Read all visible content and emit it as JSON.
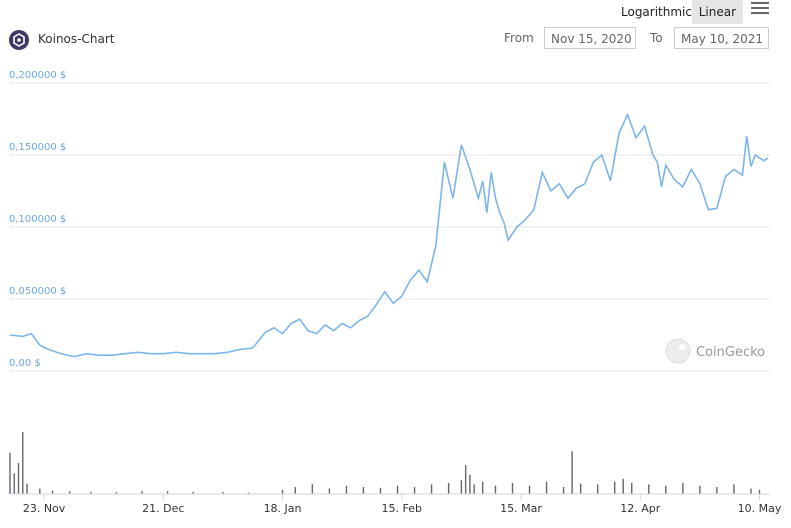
{
  "toolbar": {
    "logarithmic_label": "Logarithmic",
    "linear_label": "Linear",
    "active_scale": "Linear"
  },
  "header": {
    "title": "Koinos-Chart",
    "from_label": "From",
    "from_value": "Nov 15, 2020",
    "to_label": "To",
    "to_value": "May 10, 2021"
  },
  "watermark": "CoinGecko",
  "colors": {
    "line": "#7cb5ec",
    "axis_label": "#6fa8dc",
    "volume": "#666666",
    "grid": "#e6e6e6"
  },
  "chart_data": {
    "type": "line",
    "title": "",
    "ylim": [
      0,
      0.2
    ],
    "y_ticks": [
      "0,00 $",
      "0,050000 $",
      "0,100000 $",
      "0,150000 $",
      "0,200000 $"
    ],
    "x_ticks": [
      "23. Nov",
      "21. Dec",
      "18. Jan",
      "15. Feb",
      "15. Mar",
      "12. Apr",
      "10. May"
    ],
    "x": [
      "2020-11-15",
      "2020-11-18",
      "2020-11-20",
      "2020-11-22",
      "2020-11-24",
      "2020-11-27",
      "2020-11-30",
      "2020-12-03",
      "2020-12-06",
      "2020-12-09",
      "2020-12-12",
      "2020-12-15",
      "2020-12-18",
      "2020-12-21",
      "2020-12-24",
      "2020-12-27",
      "2020-12-30",
      "2021-01-02",
      "2021-01-05",
      "2021-01-08",
      "2021-01-11",
      "2021-01-14",
      "2021-01-16",
      "2021-01-18",
      "2021-01-20",
      "2021-01-22",
      "2021-01-24",
      "2021-01-26",
      "2021-01-28",
      "2021-01-30",
      "2021-02-01",
      "2021-02-03",
      "2021-02-05",
      "2021-02-07",
      "2021-02-09",
      "2021-02-11",
      "2021-02-13",
      "2021-02-15",
      "2021-02-17",
      "2021-02-19",
      "2021-02-21",
      "2021-02-23",
      "2021-02-25",
      "2021-02-27",
      "2021-03-01",
      "2021-03-03",
      "2021-03-05",
      "2021-03-06",
      "2021-03-07",
      "2021-03-08",
      "2021-03-09",
      "2021-03-10",
      "2021-03-11",
      "2021-03-12",
      "2021-03-14",
      "2021-03-16",
      "2021-03-18",
      "2021-03-20",
      "2021-03-22",
      "2021-03-24",
      "2021-03-26",
      "2021-03-28",
      "2021-03-30",
      "2021-04-01",
      "2021-04-03",
      "2021-04-05",
      "2021-04-07",
      "2021-04-09",
      "2021-04-11",
      "2021-04-13",
      "2021-04-15",
      "2021-04-16",
      "2021-04-17",
      "2021-04-18",
      "2021-04-20",
      "2021-04-22",
      "2021-04-24",
      "2021-04-26",
      "2021-04-28",
      "2021-04-30",
      "2021-05-02",
      "2021-05-04",
      "2021-05-06",
      "2021-05-07",
      "2021-05-08",
      "2021-05-09",
      "2021-05-10",
      "2021-05-11",
      "2021-05-12"
    ],
    "series": [
      {
        "values": [
          0.025,
          0.024,
          0.026,
          0.018,
          0.015,
          0.012,
          0.01,
          0.012,
          0.011,
          0.011,
          0.012,
          0.013,
          0.012,
          0.012,
          0.013,
          0.012,
          0.012,
          0.012,
          0.013,
          0.015,
          0.016,
          0.027,
          0.03,
          0.026,
          0.033,
          0.036,
          0.028,
          0.026,
          0.032,
          0.028,
          0.033,
          0.03,
          0.035,
          0.038,
          0.046,
          0.055,
          0.047,
          0.052,
          0.063,
          0.07,
          0.062,
          0.087,
          0.145,
          0.12,
          0.157,
          0.14,
          0.12,
          0.132,
          0.11,
          0.138,
          0.12,
          0.11,
          0.103,
          0.091,
          0.1,
          0.105,
          0.112,
          0.138,
          0.125,
          0.13,
          0.12,
          0.127,
          0.13,
          0.145,
          0.15,
          0.132,
          0.165,
          0.178,
          0.162,
          0.17,
          0.15,
          0.145,
          0.128,
          0.143,
          0.133,
          0.128,
          0.14,
          0.13,
          0.112,
          0.113,
          0.135,
          0.14,
          0.136,
          0.163,
          0.142,
          0.15,
          0.148,
          0.146,
          0.148
        ]
      }
    ],
    "volume": {
      "x": [
        "2020-11-15",
        "2020-11-16",
        "2020-11-17",
        "2020-11-18",
        "2020-11-19",
        "2020-11-22",
        "2020-11-25",
        "2020-11-29",
        "2020-12-04",
        "2020-12-10",
        "2020-12-16",
        "2020-12-22",
        "2020-12-28",
        "2021-01-04",
        "2021-01-10",
        "2021-01-18",
        "2021-01-21",
        "2021-01-25",
        "2021-01-29",
        "2021-02-02",
        "2021-02-06",
        "2021-02-10",
        "2021-02-14",
        "2021-02-18",
        "2021-02-22",
        "2021-02-26",
        "2021-03-01",
        "2021-03-02",
        "2021-03-03",
        "2021-03-04",
        "2021-03-06",
        "2021-03-09",
        "2021-03-13",
        "2021-03-17",
        "2021-03-21",
        "2021-03-25",
        "2021-03-27",
        "2021-03-29",
        "2021-04-02",
        "2021-04-06",
        "2021-04-08",
        "2021-04-10",
        "2021-04-14",
        "2021-04-18",
        "2021-04-22",
        "2021-04-26",
        "2021-04-30",
        "2021-05-04",
        "2021-05-08",
        "2021-05-10"
      ],
      "values": [
        60,
        30,
        45,
        90,
        15,
        8,
        5,
        4,
        3,
        3,
        4,
        4,
        3,
        3,
        2,
        6,
        10,
        14,
        8,
        12,
        10,
        9,
        12,
        10,
        14,
        16,
        20,
        42,
        28,
        14,
        18,
        12,
        16,
        12,
        18,
        10,
        62,
        15,
        14,
        18,
        22,
        16,
        14,
        12,
        16,
        12,
        10,
        14,
        8,
        6
      ]
    }
  }
}
